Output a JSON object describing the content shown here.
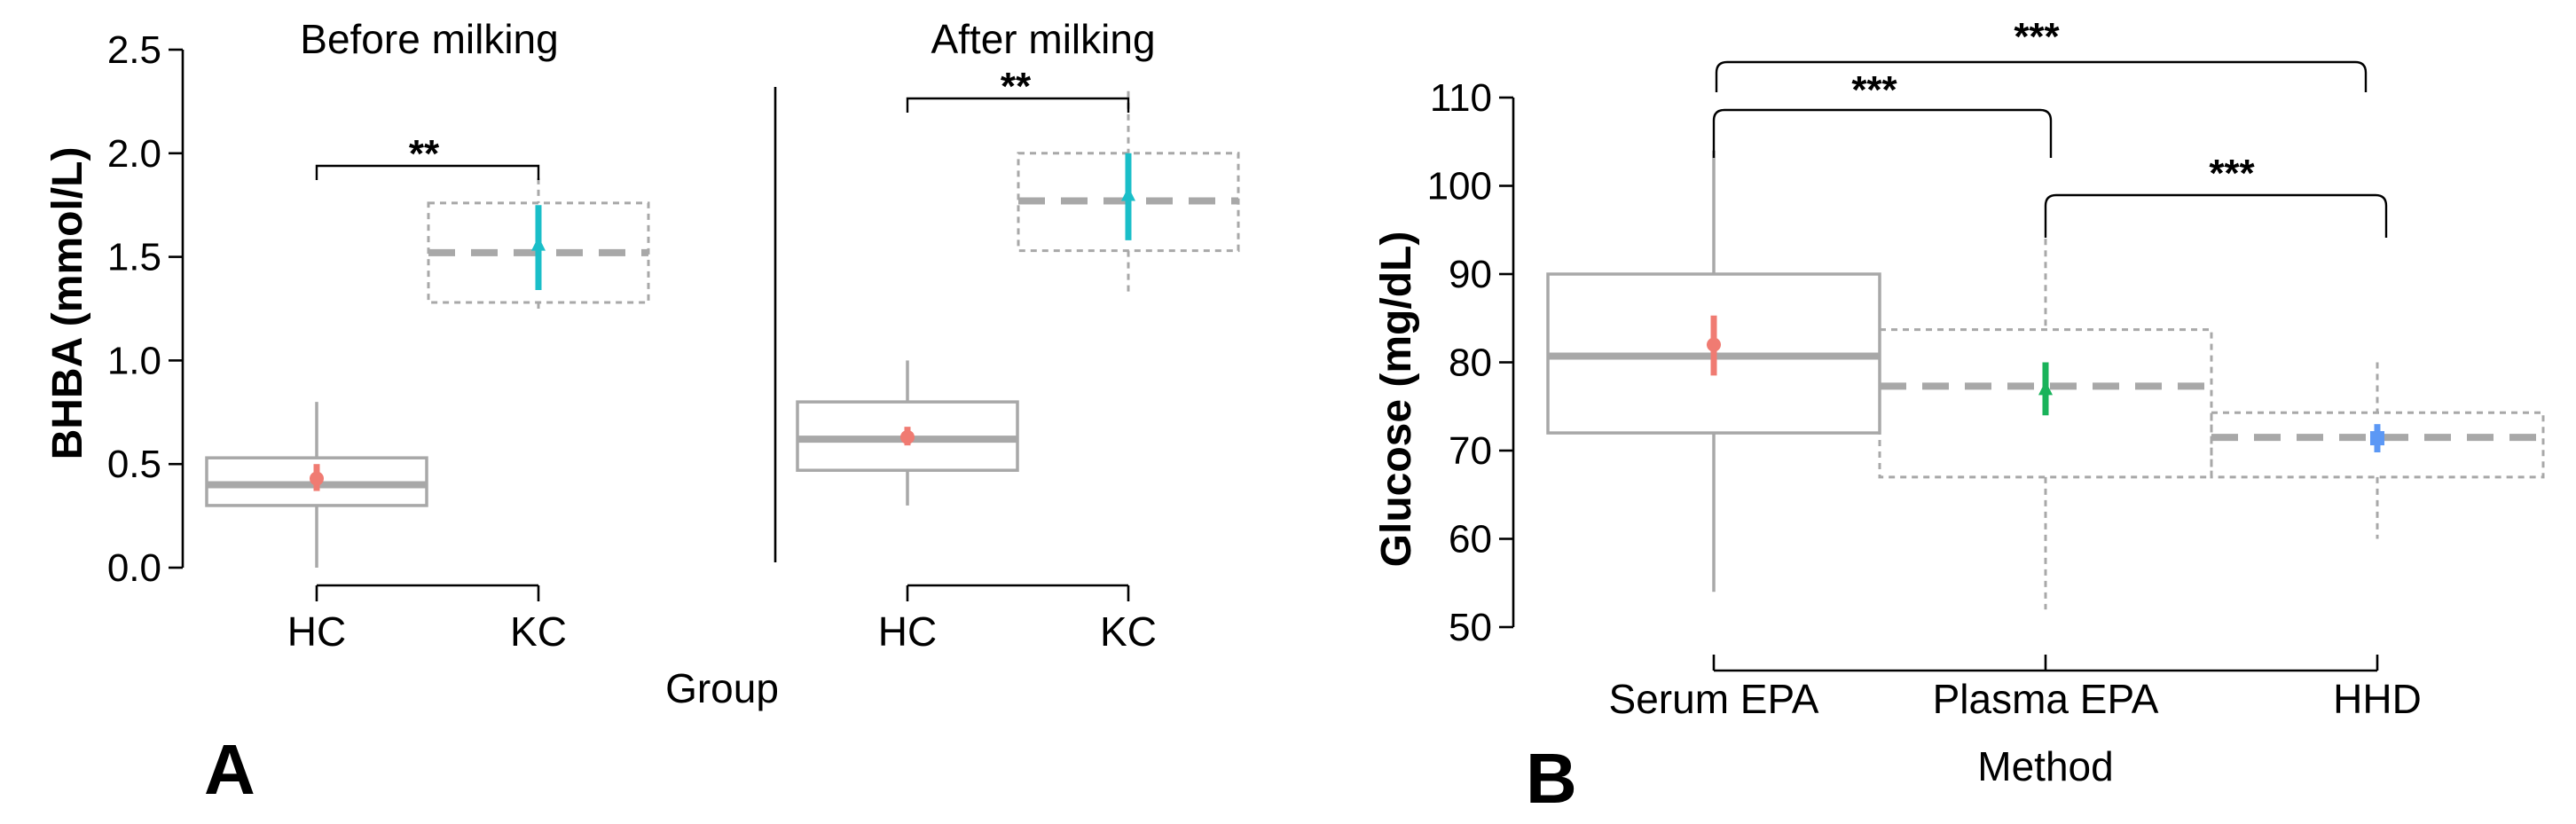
{
  "chart_data": [
    {
      "type": "boxplot",
      "panel": "A",
      "ylabel": "BHBA (mmol/L)",
      "xlabel": "Group",
      "ylim": [
        0,
        2.5
      ],
      "yticks": [
        "0.0",
        "0.5",
        "1.0",
        "1.5",
        "2.0",
        "2.5"
      ],
      "ytick_values": [
        0,
        0.5,
        1.0,
        1.5,
        2.0,
        2.5
      ],
      "facets": [
        {
          "title": "Before milking",
          "significance": "**",
          "groups": [
            {
              "label": "HC",
              "whisker_low": 0.0,
              "q1": 0.3,
              "median": 0.4,
              "q3": 0.53,
              "whisker_high": 0.8,
              "mean": 0.43,
              "ci_low": 0.37,
              "ci_high": 0.5,
              "color": "#f07b72",
              "line_style": "solid",
              "marker": "circle"
            },
            {
              "label": "KC",
              "whisker_low": 1.25,
              "q1": 1.28,
              "median": 1.52,
              "q3": 1.76,
              "whisker_high": 1.88,
              "mean": 1.56,
              "ci_low": 1.34,
              "ci_high": 1.75,
              "color": "#1abec8",
              "line_style": "dashed",
              "marker": "triangle"
            }
          ]
        },
        {
          "title": "After milking",
          "significance": "**",
          "groups": [
            {
              "label": "HC",
              "whisker_low": 0.3,
              "q1": 0.47,
              "median": 0.62,
              "q3": 0.8,
              "whisker_high": 1.0,
              "mean": 0.63,
              "ci_low": 0.59,
              "ci_high": 0.68,
              "color": "#f07b72",
              "line_style": "solid",
              "marker": "circle"
            },
            {
              "label": "KC",
              "whisker_low": 1.33,
              "q1": 1.53,
              "median": 1.77,
              "q3": 2.0,
              "whisker_high": 2.3,
              "mean": 1.8,
              "ci_low": 1.58,
              "ci_high": 2.0,
              "color": "#1abec8",
              "line_style": "dashed",
              "marker": "triangle"
            }
          ]
        }
      ]
    },
    {
      "type": "boxplot",
      "panel": "B",
      "ylabel": "Glucose (mg/dL)",
      "xlabel": "Method",
      "ylim": [
        50,
        110
      ],
      "yticks": [
        "50",
        "60",
        "70",
        "80",
        "90",
        "100",
        "110"
      ],
      "ytick_values": [
        50,
        60,
        70,
        80,
        90,
        100,
        110
      ],
      "groups": [
        {
          "label": "Serum EPA",
          "whisker_low": 54,
          "q1": 72,
          "median": 80.7,
          "q3": 90,
          "whisker_high": 104,
          "mean": 82,
          "ci_low": 78.5,
          "ci_high": 85.3,
          "color": "#f07b72",
          "line_style": "solid",
          "marker": "circle"
        },
        {
          "label": "Plasma EPA",
          "whisker_low": 52,
          "q1": 67,
          "median": 77.3,
          "q3": 83.7,
          "whisker_high": 94,
          "mean": 77,
          "ci_low": 74,
          "ci_high": 80,
          "color": "#19b35a",
          "line_style": "dashed",
          "marker": "triangle"
        },
        {
          "label": "HHD",
          "whisker_low": 60,
          "q1": 67,
          "median": 71.5,
          "q3": 74.3,
          "whisker_high": 80,
          "mean": 71.4,
          "ci_low": 69.8,
          "ci_high": 73,
          "color": "#5c98f5",
          "line_style": "dashed",
          "marker": "square"
        }
      ],
      "comparisons": [
        {
          "from": "Serum EPA",
          "to": "HHD",
          "label": "***"
        },
        {
          "from": "Serum EPA",
          "to": "Plasma EPA",
          "label": "***"
        },
        {
          "from": "Plasma EPA",
          "to": "HHD",
          "label": "***"
        }
      ]
    }
  ]
}
